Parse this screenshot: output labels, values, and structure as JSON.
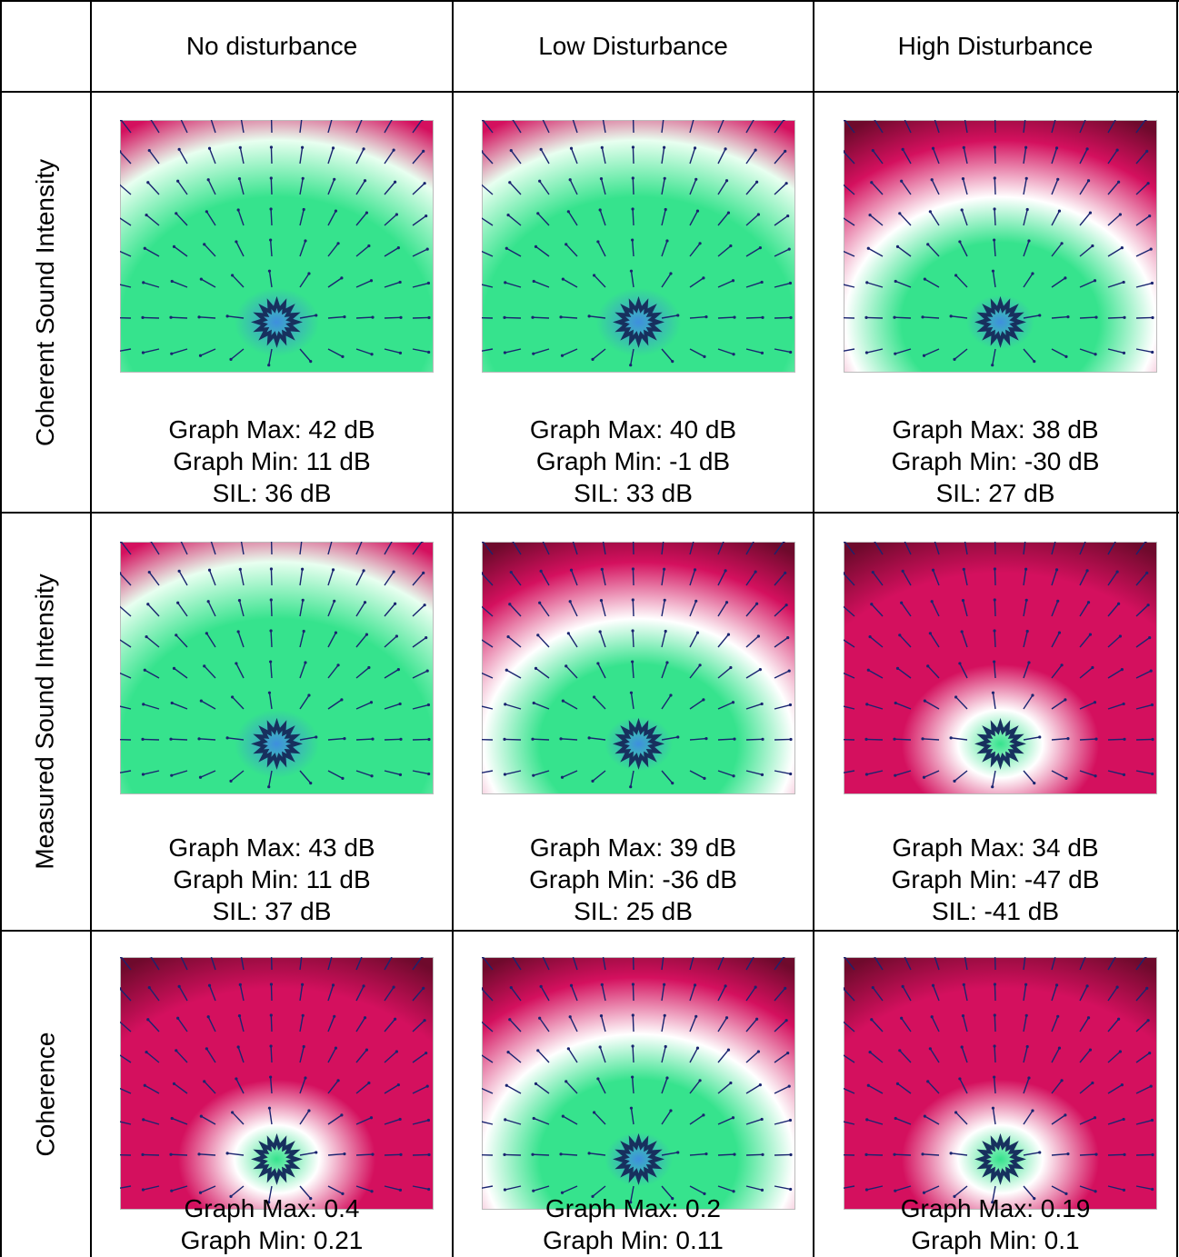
{
  "columns": [
    "No disturbance",
    "Low Disturbance",
    "High Disturbance"
  ],
  "rows": [
    "Coherent Sound Intensity",
    "Measured Sound Intensity",
    "Coherence"
  ],
  "cells": [
    [
      {
        "max": "Graph Max: 42 dB",
        "min": "Graph Min: 11 dB",
        "sil": "SIL: 36 dB",
        "theme": "green"
      },
      {
        "max": "Graph Max: 40 dB",
        "min": "Graph Min: -1 dB",
        "sil": "SIL: 33 dB",
        "theme": "green"
      },
      {
        "max": "Graph Max: 38 dB",
        "min": "Graph Min: -30 dB",
        "sil": "SIL: 27 dB",
        "theme": "mixed"
      }
    ],
    [
      {
        "max": "Graph Max: 43 dB",
        "min": "Graph Min: 11 dB",
        "sil": "SIL: 37 dB",
        "theme": "green"
      },
      {
        "max": "Graph Max: 39 dB",
        "min": "Graph Min: -36 dB",
        "sil": "SIL: 25 dB",
        "theme": "mixed"
      },
      {
        "max": "Graph Max: 34 dB",
        "min": "Graph Min: -47 dB",
        "sil": "SIL: -41 dB",
        "theme": "pink"
      }
    ],
    [
      {
        "max": "Graph Max: 0.4",
        "min": "Graph Min: 0.21",
        "theme": "pink"
      },
      {
        "max": "Graph Max: 0.2",
        "min": "Graph Min: 0.11",
        "theme": "mixed"
      },
      {
        "max": "Graph Max: 0.19",
        "min": "Graph Min: 0.1",
        "theme": "pink"
      }
    ]
  ],
  "colors": {
    "pink": "#d4105e",
    "dark_pink": "#6e0a2c",
    "green": "#36e38d",
    "blue": "#3f8fde",
    "arrow": "#1a2470",
    "star": "#17305e"
  }
}
